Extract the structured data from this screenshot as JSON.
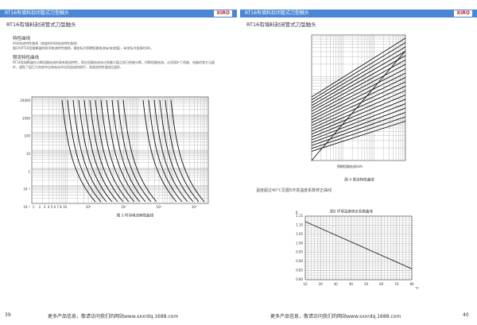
{
  "left_page": {
    "header": {
      "title": "RT16有填料封闭管式刀型触头",
      "logo": "XIRO"
    },
    "title": "RT16有填料封闭管式刀型触头",
    "section1": {
      "heading": "特性曲线",
      "lines": [
        "时间电流特性曲线（底座的时间电流特性曲线）",
        "图3为RT16型熔断器的时间电流特性曲线，横坐标为预期短路电流Ip(有效值)，纵坐标为弧前时间t。"
      ]
    },
    "section2": {
      "heading": "限流特性曲线",
      "text": "RT16型熔断器在分断短路电流时具有限流特性，即在短路电流未达到最大值之前已经被分断，切断短路电流，从而保护了线路、电路的其它元器件，避免了因巨大的热冲击和电动冲击所造成的损坏，其限流特性曲线见图4。"
    },
    "figure3": {
      "caption": "图 3 时间电流特性曲线",
      "y_labels": [
        "10000",
        "1000",
        "100",
        "10",
        "1",
        "10⁻¹",
        "10⁻²"
      ],
      "x_labels": [
        "1",
        "2",
        "3",
        "4 5 6 7 8 10",
        "10²",
        "10³",
        "10⁴",
        "10⁵"
      ]
    },
    "footer": {
      "page": "39",
      "text": "更多产品信息，敬请访问我们的网站www.sxxrdq.1688.com"
    }
  },
  "right_page": {
    "header": {
      "title": "RT16有填料封闭管式刀型触头",
      "logo": "XIRO"
    },
    "title": "RT16有填料封闭管式刀型触头",
    "figure4": {
      "caption": "图 4 限流特性曲线",
      "x_label": "预期短路电流(kA)"
    },
    "note": "温度超过40℃见图5环境温度系数修正曲线",
    "figure5": {
      "caption": "图5 环境温度修正系数曲线",
      "y_label": "K",
      "x_label": "℃",
      "xlim": [
        10,
        80
      ],
      "xticks": [
        10,
        20,
        30,
        40,
        50,
        60,
        70,
        80
      ],
      "ylim": [
        0.8,
        1.15
      ],
      "yticks": [
        {
          "value": 0.8,
          "label": "0.80"
        },
        {
          "value": 0.85,
          "label": "0.85"
        },
        {
          "value": 0.9,
          "label": "0.90"
        },
        {
          "value": 0.95,
          "label": "0.95"
        },
        {
          "value": 1.0,
          "label": "1.00"
        },
        {
          "value": 1.05,
          "label": "1.05"
        },
        {
          "value": 1.1,
          "label": "1.10"
        },
        {
          "value": 1.15,
          "label": "1.15"
        }
      ],
      "x": [
        10,
        80
      ],
      "values": [
        1.12,
        0.86
      ]
    },
    "footer": {
      "page": "40",
      "text": "更多产品信息，敬请访问我们的网站www.sxxrdq.1688.com"
    }
  }
}
